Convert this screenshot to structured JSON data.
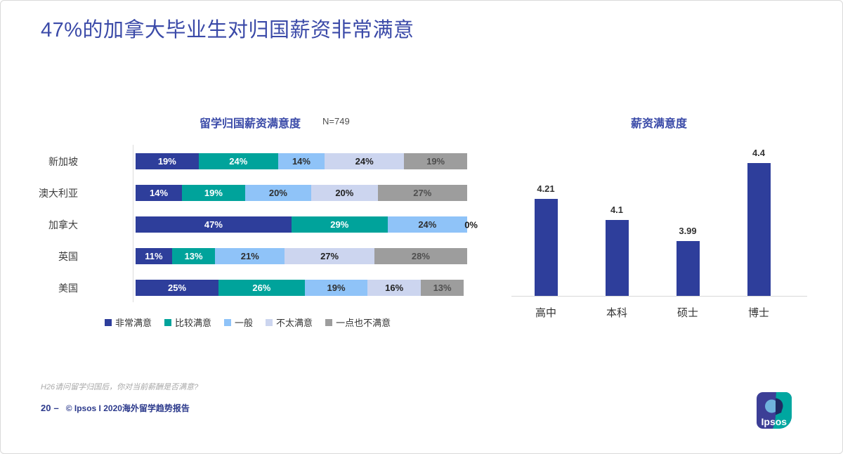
{
  "slide": {
    "title": "47%的加拿大毕业生对归国薪资非常满意",
    "footnote": "H26请问留学归国后，你对当前薪酬是否满意?",
    "page_number": "20",
    "page_dash": "–",
    "copyright": "© Ipsos I 2020海外留学趋势报告",
    "logo_text": "Ipsos"
  },
  "colors": {
    "accent_blue": "#3b4aa8",
    "footer_navy": "#2c3a8c",
    "axis_gray": "#d9d9d9",
    "logo_indigo": "#3c3e96",
    "logo_teal": "#00a7a0"
  },
  "chart_data": [
    {
      "type": "bar",
      "orientation": "horizontal-stacked",
      "title": "留学归国薪资满意度",
      "sample_label": "N=749",
      "categories": [
        "新加坡",
        "澳大利亚",
        "加拿大",
        "英国",
        "美国"
      ],
      "series": [
        {
          "name": "非常满意",
          "color": "#2e3e9b",
          "label_color": "#ffffff",
          "values": [
            19,
            14,
            47,
            11,
            25
          ]
        },
        {
          "name": "比较满意",
          "color": "#00a39b",
          "label_color": "#ffffff",
          "values": [
            24,
            19,
            29,
            13,
            26
          ]
        },
        {
          "name": "一般",
          "color": "#8fc3f8",
          "label_color": "#2f2f2f",
          "values": [
            14,
            20,
            24,
            21,
            19
          ]
        },
        {
          "name": "不太满意",
          "color": "#ccd5ef",
          "label_color": "#222222",
          "values": [
            24,
            20,
            0,
            27,
            16
          ]
        },
        {
          "name": "一点也不满意",
          "color": "#9d9d9d",
          "label_color": "#4f4f4f",
          "values": [
            19,
            27,
            0,
            28,
            13
          ]
        }
      ],
      "zero_labels": [
        null,
        null,
        "0%",
        null,
        null
      ],
      "value_suffix": "%",
      "xlim": [
        0,
        100
      ],
      "legend_position": "bottom",
      "grid": false
    },
    {
      "type": "bar",
      "orientation": "vertical",
      "title": "薪资满意度",
      "categories": [
        "高中",
        "本科",
        "硕士",
        "博士"
      ],
      "values": [
        4.21,
        4.1,
        3.99,
        4.4
      ],
      "bar_color": "#2e3e9b",
      "ylim": [
        3.7,
        4.5
      ],
      "grid": false,
      "legend_position": "none"
    }
  ]
}
